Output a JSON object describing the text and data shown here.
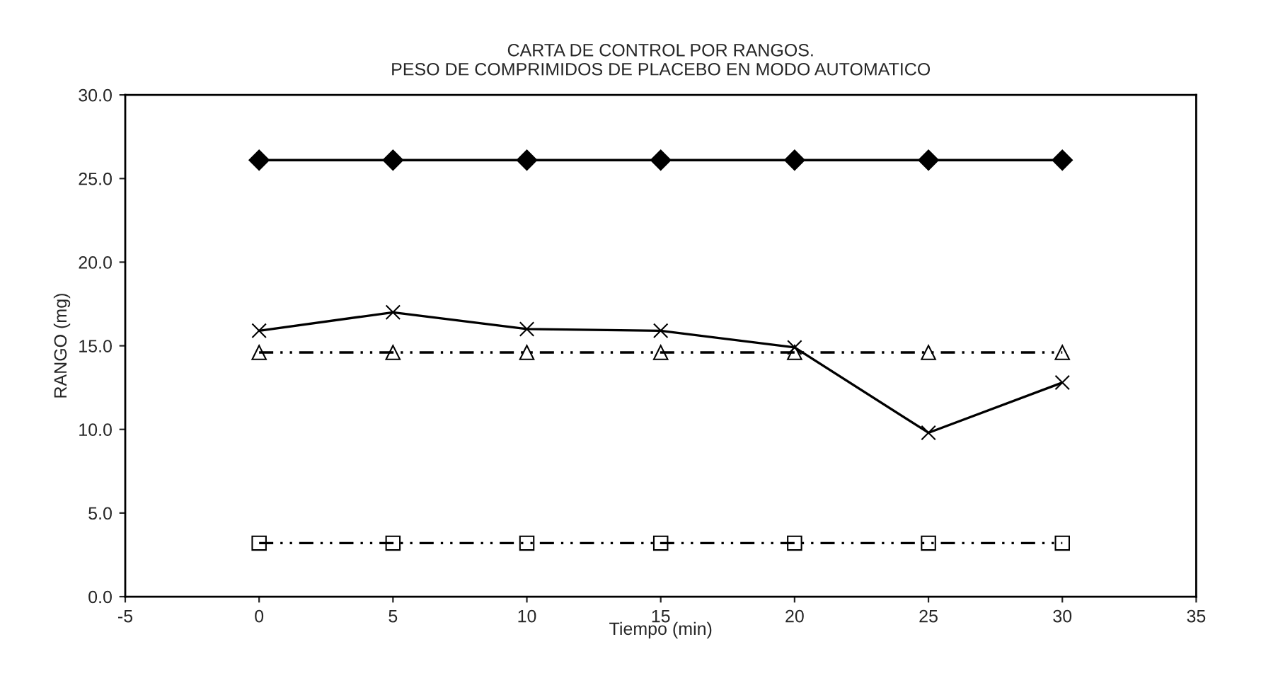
{
  "chart_data": {
    "type": "line",
    "title": "CARTA DE CONTROL POR RANGOS.\nPESO DE COMPRIMIDOS DE PLACEBO EN MODO AUTOMATICO",
    "xlabel": "Tiempo (min)",
    "ylabel": "RANGO (mg)",
    "x": [
      0,
      5,
      10,
      15,
      20,
      25,
      30
    ],
    "series": [
      {
        "color": "#000000",
        "marker": "diamond",
        "line_style": "solid",
        "values": [
          26.1,
          26.1,
          26.1,
          26.1,
          26.1,
          26.1,
          26.1
        ]
      },
      {
        "color": "#000000",
        "marker": "cross",
        "line_style": "solid",
        "values": [
          15.9,
          17.0,
          16.0,
          15.9,
          14.9,
          9.8,
          12.8
        ]
      },
      {
        "color": "#000000",
        "marker": "triangle",
        "line_style": "dashed",
        "values": [
          14.6,
          14.6,
          14.6,
          14.6,
          14.6,
          14.6,
          14.6
        ]
      },
      {
        "color": "#000000",
        "marker": "square",
        "line_style": "dashed",
        "values": [
          3.2,
          3.2,
          3.2,
          3.2,
          3.2,
          3.2,
          3.2
        ]
      }
    ],
    "xlim": [
      -5,
      35
    ],
    "xticks": [
      -5,
      0,
      5,
      10,
      15,
      20,
      25,
      30,
      35
    ],
    "ylim": [
      0,
      30
    ],
    "yticks": [
      {
        "value": 0,
        "label": "0.0"
      },
      {
        "value": 5,
        "label": "5.0"
      },
      {
        "value": 10,
        "label": "10.0"
      },
      {
        "value": 15,
        "label": "15.0"
      },
      {
        "value": 20,
        "label": "20.0"
      },
      {
        "value": 25,
        "label": "25.0"
      },
      {
        "value": 30,
        "label": "30.0"
      }
    ]
  }
}
